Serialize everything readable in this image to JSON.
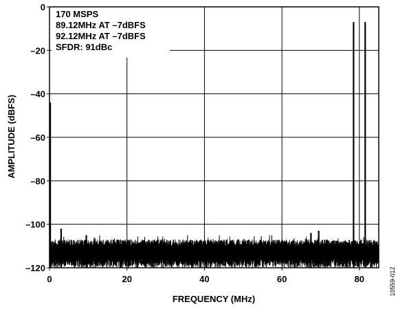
{
  "chart_data": {
    "type": "line",
    "title": "",
    "xlabel": "FREQUENCY (MHz)",
    "ylabel": "AMPLITUDE (dBFS)",
    "xlim": [
      0,
      85
    ],
    "ylim": [
      -120,
      0
    ],
    "xticks": [
      0,
      20,
      40,
      60,
      80
    ],
    "yticks": [
      0,
      -20,
      -40,
      -60,
      -80,
      -100,
      -120
    ],
    "xtick_labels": [
      "0",
      "20",
      "40",
      "60",
      "80"
    ],
    "ytick_labels": [
      "0",
      "–20",
      "–40",
      "–60",
      "–80",
      "–100",
      "–120"
    ],
    "grid": true,
    "annotations": [
      "170 MSPS",
      "89.12MHz AT –7dBFS",
      "92.12MHz AT –7dBFS",
      "SFDR: 91dBc"
    ],
    "figure_id": "10559-012",
    "line_color": "#000000",
    "series": [
      {
        "values_description": "FFT spectrum",
        "noise_floor_dBFS": -113,
        "noise_range_dBFS": [
          -120,
          -107
        ],
        "peaks": [
          {
            "x": 0.2,
            "y": -44
          },
          {
            "x": 78.5,
            "y": -7
          },
          {
            "x": 81.5,
            "y": -7
          },
          {
            "x": 9.5,
            "y": -105
          },
          {
            "x": 67.5,
            "y": -104
          },
          {
            "x": 69.5,
            "y": -103
          },
          {
            "x": 3.0,
            "y": -102
          }
        ]
      }
    ]
  }
}
